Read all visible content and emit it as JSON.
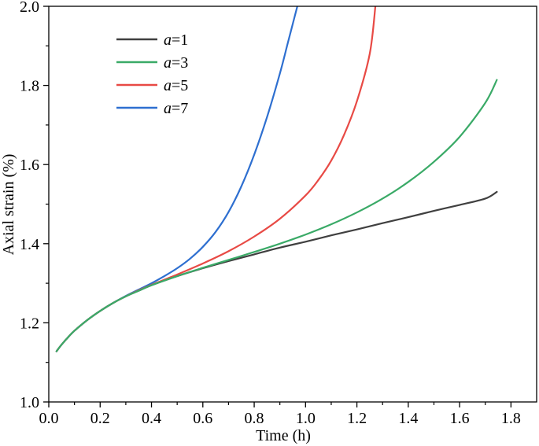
{
  "chart_data": {
    "type": "line",
    "xlabel": "Time (h)",
    "ylabel": "Axial strain (%)",
    "xlim": [
      0.0,
      1.9
    ],
    "ylim": [
      1.0,
      2.0
    ],
    "xticks": [
      "0.0",
      "0.2",
      "0.4",
      "0.6",
      "0.8",
      "1.0",
      "1.2",
      "1.4",
      "1.6",
      "1.8"
    ],
    "yticks": [
      "1.0",
      "1.2",
      "1.4",
      "1.6",
      "1.8",
      "2.0"
    ],
    "grid": false,
    "legend_position": "top-left",
    "series": [
      {
        "name": "a=1",
        "name_italic": "a",
        "name_rest": "=1",
        "color": "#404040",
        "x": [
          0.03,
          0.05,
          0.08,
          0.1,
          0.15,
          0.2,
          0.25,
          0.3,
          0.35,
          0.4,
          0.5,
          0.6,
          0.7,
          0.8,
          0.9,
          1.0,
          1.1,
          1.2,
          1.3,
          1.4,
          1.5,
          1.6,
          1.7,
          1.745
        ],
        "y": [
          1.128,
          1.145,
          1.167,
          1.18,
          1.207,
          1.23,
          1.25,
          1.267,
          1.281,
          1.295,
          1.318,
          1.338,
          1.356,
          1.373,
          1.39,
          1.405,
          1.421,
          1.436,
          1.452,
          1.467,
          1.483,
          1.498,
          1.514,
          1.531
        ]
      },
      {
        "name": "a=3",
        "name_italic": "a",
        "name_rest": "=3",
        "color": "#3aaa67",
        "x": [
          0.03,
          0.05,
          0.08,
          0.1,
          0.15,
          0.2,
          0.25,
          0.3,
          0.35,
          0.4,
          0.5,
          0.6,
          0.7,
          0.8,
          0.9,
          1.0,
          1.1,
          1.2,
          1.3,
          1.4,
          1.5,
          1.6,
          1.7,
          1.745
        ],
        "y": [
          1.128,
          1.145,
          1.167,
          1.18,
          1.207,
          1.23,
          1.25,
          1.267,
          1.281,
          1.295,
          1.318,
          1.339,
          1.359,
          1.379,
          1.4,
          1.423,
          1.449,
          1.479,
          1.514,
          1.556,
          1.607,
          1.67,
          1.756,
          1.814
        ]
      },
      {
        "name": "a=5",
        "name_italic": "a",
        "name_rest": "=5",
        "color": "#e84a45",
        "x": [
          0.03,
          0.05,
          0.08,
          0.1,
          0.15,
          0.2,
          0.25,
          0.3,
          0.35,
          0.4,
          0.5,
          0.6,
          0.7,
          0.8,
          0.9,
          1.0,
          1.05,
          1.1,
          1.15,
          1.2,
          1.25,
          1.272
        ],
        "y": [
          1.128,
          1.145,
          1.167,
          1.18,
          1.207,
          1.23,
          1.25,
          1.267,
          1.282,
          1.296,
          1.322,
          1.35,
          1.381,
          1.418,
          1.463,
          1.522,
          1.561,
          1.61,
          1.675,
          1.76,
          1.88,
          2.0
        ]
      },
      {
        "name": "a=7",
        "name_italic": "a",
        "name_rest": "=7",
        "color": "#2e6fd0",
        "x": [
          0.03,
          0.05,
          0.08,
          0.1,
          0.15,
          0.2,
          0.25,
          0.3,
          0.35,
          0.4,
          0.45,
          0.5,
          0.55,
          0.6,
          0.65,
          0.7,
          0.75,
          0.8,
          0.85,
          0.9,
          0.93,
          0.95,
          0.968
        ],
        "y": [
          1.128,
          1.145,
          1.167,
          1.18,
          1.207,
          1.23,
          1.25,
          1.268,
          1.284,
          1.3,
          1.318,
          1.338,
          1.362,
          1.392,
          1.43,
          1.48,
          1.545,
          1.625,
          1.72,
          1.83,
          1.905,
          1.955,
          2.0
        ]
      }
    ]
  }
}
